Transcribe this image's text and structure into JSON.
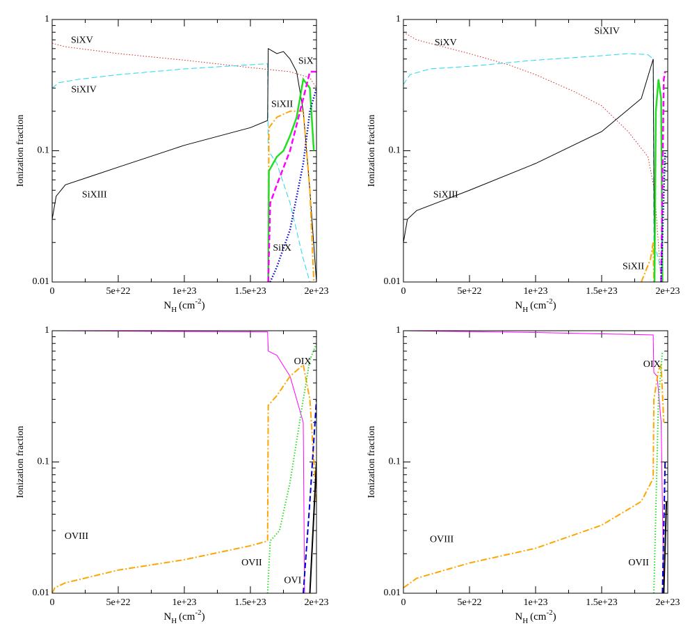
{
  "chart_data": [
    {
      "type": "line",
      "log_y": true,
      "xlim": [
        0,
        2e+23
      ],
      "ylim": [
        0.01,
        1
      ],
      "xticks": [
        0,
        {
          "value": 5e+22,
          "label": "5e+22"
        },
        {
          "value": 1e+23,
          "label": "1e+23"
        },
        {
          "value": 1.5e+23,
          "label": "1.5e+23"
        },
        {
          "value": 2e+23,
          "label": "2e+23"
        }
      ],
      "yticks": [
        0.01,
        0.1,
        1
      ],
      "xlabel": [
        "N",
        "H",
        "(cm",
        "-2",
        ")"
      ],
      "ylabel": "Ionization fraction",
      "series": [
        {
          "color": "#d42020",
          "dash": "dotted",
          "width": 1,
          "x": [
            0,
            1e+22,
            5e+22,
            1e+23,
            1.5e+23,
            1.8e+23,
            1.95e+23,
            2e+23
          ],
          "values": [
            0.66,
            0.62,
            0.55,
            0.49,
            0.43,
            0.4,
            0.36,
            0.3
          ]
        },
        {
          "color": "#20d8e8",
          "dash": "dashed",
          "width": 1,
          "x": [
            0,
            5e+21,
            2e+22,
            5e+22,
            1e+23,
            1.63e+23,
            1.635e+23,
            1.7e+23,
            1.8e+23,
            1.9e+23,
            1.95e+23
          ],
          "values": [
            0.3,
            0.33,
            0.35,
            0.38,
            0.42,
            0.46,
            0.1,
            0.08,
            0.04,
            0.015,
            0.01
          ]
        },
        {
          "color": "#000000",
          "dash": "solid",
          "width": 1,
          "x": [
            0,
            3e+21,
            1e+22,
            5e+22,
            1e+23,
            1.5e+23,
            1.63e+23,
            1.635e+23,
            1.7e+23,
            1.75e+23,
            1.8e+23,
            1.85e+23,
            1.9e+23,
            1.95e+23,
            2e+23
          ],
          "values": [
            0.03,
            0.045,
            0.055,
            0.075,
            0.11,
            0.15,
            0.17,
            0.6,
            0.55,
            0.57,
            0.5,
            0.4,
            0.2,
            0.05,
            0.01
          ]
        },
        {
          "color": "#ffa500",
          "dash": "dashdot",
          "width": 2,
          "x": [
            1.635e+23,
            1.64e+23,
            1.7e+23,
            1.8e+23,
            1.9e+23,
            1.95e+23,
            1.98e+23
          ],
          "values": [
            0.01,
            0.15,
            0.18,
            0.2,
            0.2,
            0.05,
            0.01
          ]
        },
        {
          "color": "#22dd22",
          "dash": "solid",
          "width": 2.5,
          "x": [
            1.635e+23,
            1.64e+23,
            1.7e+23,
            1.75e+23,
            1.8e+23,
            1.85e+23,
            1.9e+23,
            1.95e+23,
            1.98e+23
          ],
          "values": [
            0.01,
            0.07,
            0.09,
            0.1,
            0.13,
            0.18,
            0.35,
            0.3,
            0.1
          ]
        },
        {
          "color": "#ff00ff",
          "dash": "dashed",
          "width": 2.5,
          "x": [
            1.635e+23,
            1.65e+23,
            1.7e+23,
            1.8e+23,
            1.9e+23,
            1.95e+23,
            2e+23
          ],
          "values": [
            0.01,
            0.04,
            0.055,
            0.1,
            0.25,
            0.4,
            0.4
          ]
        },
        {
          "color": "#0000cc",
          "dash": "dotted",
          "width": 2.5,
          "x": [
            1.65e+23,
            1.7e+23,
            1.8e+23,
            1.9e+23,
            1.95e+23,
            2e+23
          ],
          "values": [
            0.01,
            0.013,
            0.025,
            0.08,
            0.2,
            0.3
          ]
        }
      ],
      "annotations": [
        {
          "text": "SiXV",
          "x": 2.26e+22,
          "y": 0.69
        },
        {
          "text": "SiXIV",
          "x": 2.4e+22,
          "y": 0.29
        },
        {
          "text": "SiXIII",
          "x": 3.2e+22,
          "y": 0.046
        },
        {
          "text": "SiXII",
          "x": 1.74e+23,
          "y": 0.225
        },
        {
          "text": "SiX",
          "x": 1.92e+23,
          "y": 0.48
        },
        {
          "text": "SiIX",
          "x": 1.74e+23,
          "y": 0.018
        }
      ]
    },
    {
      "type": "line",
      "log_y": true,
      "xlim": [
        0,
        2e+23
      ],
      "ylim": [
        0.01,
        1
      ],
      "xticks": [
        0,
        {
          "value": 5e+22,
          "label": "5e+22"
        },
        {
          "value": 1e+23,
          "label": "1e+23"
        },
        {
          "value": 1.5e+23,
          "label": "1.5e+23"
        },
        {
          "value": 2e+23,
          "label": "2e+23"
        }
      ],
      "yticks": [
        0.01,
        0.1,
        1
      ],
      "xlabel": [
        "N",
        "H",
        "(cm",
        "-2",
        ")"
      ],
      "ylabel": "Ionization fraction",
      "series": [
        {
          "color": "#d42020",
          "dash": "dotted",
          "width": 1,
          "x": [
            0,
            1e+22,
            3e+22,
            5e+22,
            8e+22,
            1e+23,
            1.3e+23,
            1.5e+23,
            1.7e+23,
            1.85e+23,
            1.9e+23,
            1.95e+23
          ],
          "values": [
            0.8,
            0.7,
            0.62,
            0.55,
            0.45,
            0.38,
            0.28,
            0.22,
            0.14,
            0.09,
            0.05,
            0.01
          ]
        },
        {
          "color": "#20d8e8",
          "dash": "dashed",
          "width": 1,
          "x": [
            0,
            5e+21,
            2e+22,
            5e+22,
            1e+23,
            1.5e+23,
            1.7e+23,
            1.85e+23,
            1.89e+23,
            1.895e+23,
            1.93e+23,
            1.96e+23
          ],
          "values": [
            0.32,
            0.38,
            0.42,
            0.44,
            0.49,
            0.53,
            0.55,
            0.54,
            0.5,
            0.02,
            0.015,
            0.01
          ]
        },
        {
          "color": "#000000",
          "dash": "solid",
          "width": 1,
          "x": [
            0,
            3e+21,
            1e+22,
            5e+22,
            1e+23,
            1.5e+23,
            1.8e+23,
            1.89e+23,
            1.9e+23
          ],
          "values": [
            0.02,
            0.03,
            0.035,
            0.05,
            0.08,
            0.14,
            0.25,
            0.5,
            0.01
          ]
        },
        {
          "color": "#ffa500",
          "dash": "dashdot",
          "width": 2,
          "x": [
            1.8e+23,
            1.87e+23,
            1.89e+23,
            1.895e+23
          ],
          "values": [
            0.01,
            0.015,
            0.02,
            0.01
          ]
        },
        {
          "color": "#22dd22",
          "dash": "solid",
          "width": 2.5,
          "x": [
            1.9e+23,
            1.91e+23,
            1.93e+23,
            1.95e+23,
            1.96e+23
          ],
          "values": [
            0.01,
            0.2,
            0.35,
            0.25,
            0.01
          ]
        },
        {
          "color": "#ff00ff",
          "dash": "dashed",
          "width": 2.5,
          "x": [
            1.95e+23,
            1.97e+23,
            1.98e+23
          ],
          "values": [
            0.01,
            0.35,
            0.4
          ]
        },
        {
          "color": "#0000cc",
          "dash": "dotted",
          "width": 2.5,
          "x": [
            1.95e+23,
            1.98e+23
          ],
          "values": [
            0.01,
            0.1
          ]
        }
      ],
      "annotations": [
        {
          "text": "SiXV",
          "x": 3.2e+22,
          "y": 0.66
        },
        {
          "text": "SiXIV",
          "x": 1.54e+23,
          "y": 0.81
        },
        {
          "text": "SiXIII",
          "x": 3.2e+22,
          "y": 0.046
        },
        {
          "text": "SiXII",
          "x": 1.74e+23,
          "y": 0.013
        }
      ]
    },
    {
      "type": "line",
      "log_y": true,
      "xlim": [
        0,
        2e+23
      ],
      "ylim": [
        0.01,
        1
      ],
      "xticks": [
        0,
        {
          "value": 5e+22,
          "label": "5e+22"
        },
        {
          "value": 1e+23,
          "label": "1e+23"
        },
        {
          "value": 1.5e+23,
          "label": "1.5e+23"
        },
        {
          "value": 2e+23,
          "label": "2e+23"
        }
      ],
      "yticks": [
        0.01,
        0.1,
        1
      ],
      "xlabel": [
        "N",
        "H",
        "(cm",
        "-2",
        ")"
      ],
      "ylabel": "Ionization fraction",
      "series": [
        {
          "color": "#ff00ff",
          "dash": "solid",
          "width": 1,
          "x": [
            0,
            1.63e+23,
            1.635e+23,
            1.7e+23,
            1.8e+23,
            1.85e+23,
            1.9e+23,
            1.91e+23
          ],
          "values": [
            1,
            0.98,
            0.7,
            0.65,
            0.45,
            0.3,
            0.2,
            0.01
          ]
        },
        {
          "color": "#ffa500",
          "dash": "dashdot",
          "width": 2,
          "x": [
            0,
            2e+21,
            1e+22,
            5e+22,
            1e+23,
            1.5e+23,
            1.63e+23,
            1.635e+23,
            1.7e+23,
            1.8e+23,
            1.9e+23,
            1.95e+23,
            2e+23
          ],
          "values": [
            0.01,
            0.011,
            0.012,
            0.015,
            0.018,
            0.023,
            0.025,
            0.27,
            0.32,
            0.45,
            0.55,
            0.3,
            0.05
          ]
        },
        {
          "color": "#22dd22",
          "dash": "dotted",
          "width": 2,
          "x": [
            1.63e+23,
            1.65e+23,
            1.72e+23,
            1.8e+23,
            1.9e+23,
            1.95e+23,
            2e+23
          ],
          "values": [
            0.01,
            0.025,
            0.03,
            0.07,
            0.3,
            0.6,
            0.8
          ]
        },
        {
          "color": "#0000cc",
          "dash": "dashed",
          "width": 2,
          "x": [
            1.9e+23,
            1.95e+23,
            2e+23
          ],
          "values": [
            0.01,
            0.05,
            0.3
          ]
        },
        {
          "color": "#000000",
          "dash": "solid",
          "width": 2,
          "x": [
            1.95e+23,
            2e+23
          ],
          "values": [
            0.01,
            0.1
          ]
        }
      ],
      "annotations": [
        {
          "text": "OIX",
          "x": 1.895e+23,
          "y": 0.58
        },
        {
          "text": "OVIII",
          "x": 1.84e+22,
          "y": 0.027
        },
        {
          "text": "OVII",
          "x": 1.51e+23,
          "y": 0.017
        },
        {
          "text": "OVI",
          "x": 1.82e+23,
          "y": 0.0124
        }
      ]
    },
    {
      "type": "line",
      "log_y": true,
      "xlim": [
        0,
        2e+23
      ],
      "ylim": [
        0.01,
        1
      ],
      "xticks": [
        0,
        {
          "value": 5e+22,
          "label": "5e+22"
        },
        {
          "value": 1e+23,
          "label": "1e+23"
        },
        {
          "value": 1.5e+23,
          "label": "1.5e+23"
        },
        {
          "value": 2e+23,
          "label": "2e+23"
        }
      ],
      "yticks": [
        0.01,
        0.1,
        1
      ],
      "xlabel": [
        "N",
        "H",
        "(cm",
        "-2",
        ")"
      ],
      "ylabel": "Ionization fraction",
      "series": [
        {
          "color": "#ff00ff",
          "dash": "solid",
          "width": 1,
          "x": [
            0,
            1e+23,
            1.89e+23,
            1.895e+23,
            1.92e+23,
            1.95e+23,
            1.97e+23
          ],
          "values": [
            1,
            0.97,
            0.93,
            0.48,
            0.45,
            0.2,
            0.01
          ]
        },
        {
          "color": "#ffa500",
          "dash": "dashdot",
          "width": 2,
          "x": [
            0,
            1e+22,
            5e+22,
            1e+23,
            1.5e+23,
            1.8e+23,
            1.89e+23,
            1.895e+23,
            1.93e+23,
            1.95e+23,
            1.97e+23
          ],
          "values": [
            0.011,
            0.013,
            0.017,
            0.022,
            0.033,
            0.05,
            0.075,
            0.3,
            0.5,
            0.55,
            0.2
          ]
        },
        {
          "color": "#22dd22",
          "dash": "dotted",
          "width": 2,
          "x": [
            1.895e+23,
            1.93e+23,
            1.96e+23
          ],
          "values": [
            0.01,
            0.3,
            0.7
          ]
        },
        {
          "color": "#0000cc",
          "dash": "dashed",
          "width": 2,
          "x": [
            1.96e+23,
            1.98e+23
          ],
          "values": [
            0.01,
            0.1
          ]
        },
        {
          "color": "#000000",
          "dash": "solid",
          "width": 2,
          "x": [
            1.97e+23,
            1.99e+23
          ],
          "values": [
            0.01,
            0.05
          ]
        }
      ],
      "annotations": [
        {
          "text": "OIX",
          "x": 1.88e+23,
          "y": 0.55
        },
        {
          "text": "OVIII",
          "x": 2.9e+22,
          "y": 0.0256
        },
        {
          "text": "OVII",
          "x": 1.78e+23,
          "y": 0.017
        }
      ]
    }
  ]
}
